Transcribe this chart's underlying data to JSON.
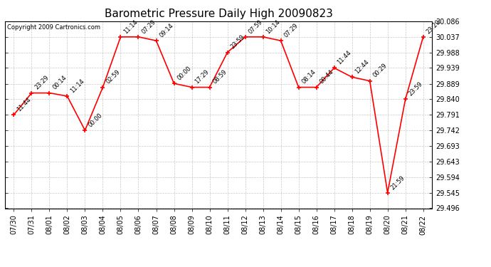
{
  "title": "Barometric Pressure Daily High 20090823",
  "copyright": "Copyright 2009 Cartronics.com",
  "x_labels": [
    "07/30",
    "07/31",
    "08/01",
    "08/02",
    "08/03",
    "08/04",
    "08/05",
    "08/06",
    "08/07",
    "08/08",
    "08/09",
    "08/10",
    "08/11",
    "08/12",
    "08/13",
    "08/14",
    "08/15",
    "08/16",
    "08/17",
    "08/18",
    "08/19",
    "08/20",
    "08/21",
    "08/22"
  ],
  "y_values": [
    29.791,
    29.86,
    29.86,
    29.85,
    29.742,
    29.878,
    30.037,
    30.037,
    30.025,
    29.89,
    29.878,
    29.878,
    29.988,
    30.037,
    30.037,
    30.025,
    29.878,
    29.878,
    29.939,
    29.91,
    29.898,
    29.545,
    29.84,
    30.037
  ],
  "point_labels": [
    "11:44",
    "23:29",
    "00:14",
    "11:14",
    "00:00",
    "02:59",
    "11:14",
    "07:29",
    "09:14",
    "00:00",
    "17:29",
    "08:59",
    "23:59",
    "07:59",
    "10:14",
    "07:29",
    "08:14",
    "00:44",
    "11:44",
    "12:44",
    "00:29",
    "21:59",
    "23:59",
    "23:29"
  ],
  "y_min": 29.496,
  "y_max": 30.086,
  "y_ticks": [
    29.496,
    29.545,
    29.594,
    29.643,
    29.693,
    29.742,
    29.791,
    29.84,
    29.889,
    29.939,
    29.988,
    30.037,
    30.086
  ],
  "line_color": "#ff0000",
  "marker_color": "#ff0000",
  "bg_color": "#ffffff",
  "plot_bg_color": "#ffffff",
  "grid_color": "#bbbbbb",
  "title_fontsize": 11,
  "copyright_fontsize": 6,
  "tick_label_fontsize": 7,
  "point_label_fontsize": 6
}
